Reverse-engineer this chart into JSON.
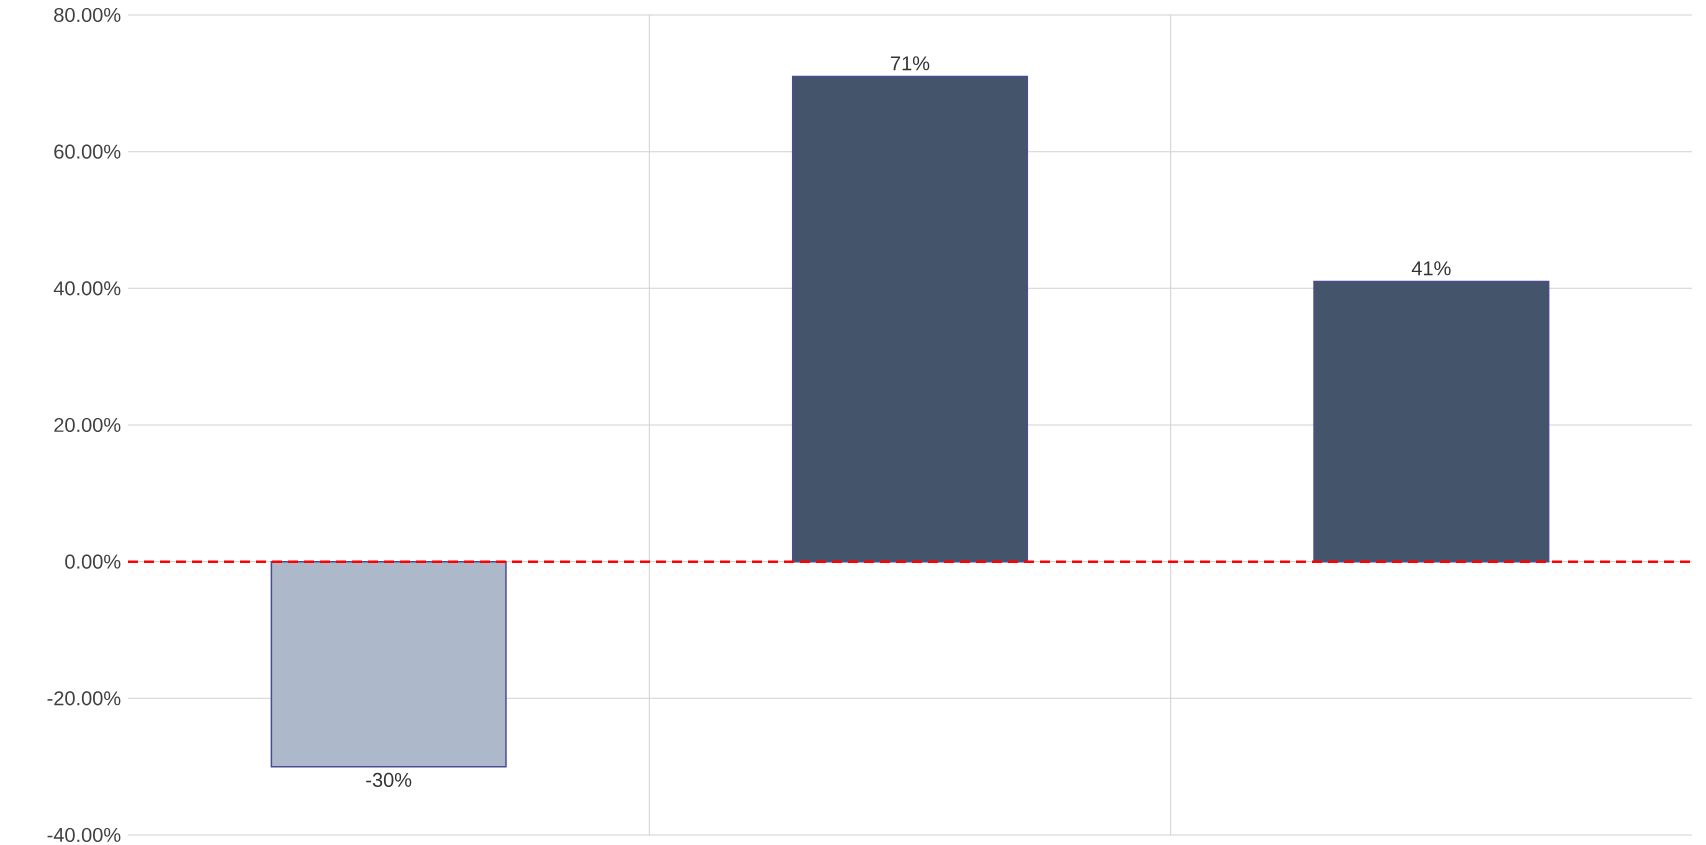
{
  "chart_data": {
    "type": "bar",
    "categories": [
      null,
      null,
      null
    ],
    "values": [
      -30,
      71,
      41
    ],
    "colors": [
      "#adb9ca",
      "#44546a",
      "#44546a"
    ],
    "value_labels": [
      "-30%",
      "71%",
      "41%"
    ],
    "ylim": [
      -40,
      80
    ],
    "yticks": [
      {
        "value": -40,
        "label": "-40.00%"
      },
      {
        "value": -20,
        "label": "-20.00%"
      },
      {
        "value": 0,
        "label": "0.00%"
      },
      {
        "value": 20,
        "label": "20.00%"
      },
      {
        "value": 40,
        "label": "40.00%"
      },
      {
        "value": 60,
        "label": "60.00%"
      },
      {
        "value": 80,
        "label": "80.00%"
      }
    ],
    "grid": true,
    "tick_labels": "y",
    "ref_lines": [
      {
        "axis": "y",
        "value": 0,
        "color": "#ff0000",
        "line_style": "dashed"
      }
    ]
  }
}
